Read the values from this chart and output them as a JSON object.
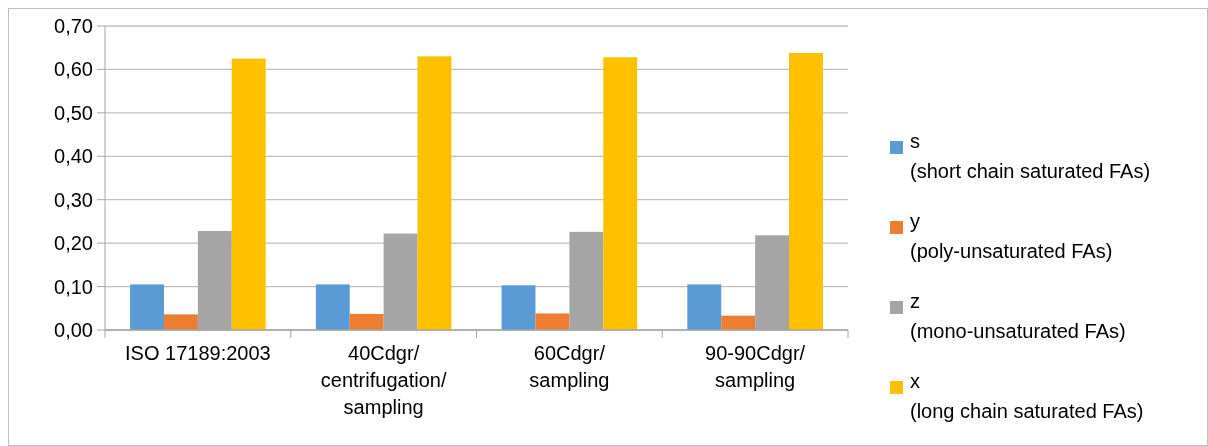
{
  "chart_data": {
    "type": "bar",
    "categories": [
      "ISO 17189:2003",
      "40Cdgr/\ncentrifugation/\nsampling",
      "60Cdgr/\nsampling",
      "90-90Cdgr/\nsampling"
    ],
    "series": [
      {
        "name": "s\n(short chain saturated FAs)",
        "color": "#5b9bd5",
        "values": [
          0.105,
          0.105,
          0.103,
          0.105
        ]
      },
      {
        "name": "y\n(poly-unsaturated FAs)",
        "color": "#ed7d31",
        "values": [
          0.036,
          0.037,
          0.038,
          0.033
        ]
      },
      {
        "name": "z\n(mono-unsaturated FAs)",
        "color": "#a5a5a5",
        "values": [
          0.228,
          0.222,
          0.226,
          0.218
        ]
      },
      {
        "name": "x\n(long chain saturated FAs)",
        "color": "#ffc000",
        "values": [
          0.625,
          0.63,
          0.628,
          0.638
        ]
      }
    ],
    "ylim": [
      0,
      0.7
    ],
    "yticks": [
      {
        "value": 0,
        "label": "0,00"
      },
      {
        "value": 0.1,
        "label": "0,10"
      },
      {
        "value": 0.2,
        "label": "0,20"
      },
      {
        "value": 0.3,
        "label": "0,30"
      },
      {
        "value": 0.4,
        "label": "0,40"
      },
      {
        "value": 0.5,
        "label": "0,50"
      },
      {
        "value": 0.6,
        "label": "0,60"
      },
      {
        "value": 0.7,
        "label": "0,70"
      }
    ],
    "grid": "y",
    "legend": "right"
  }
}
